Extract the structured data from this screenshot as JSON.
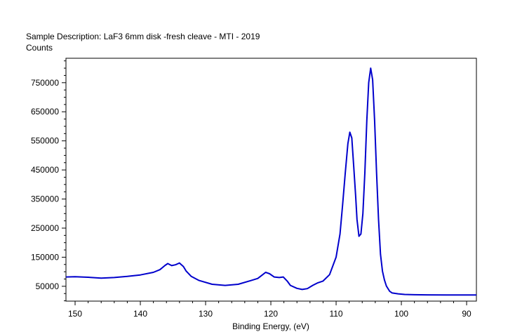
{
  "header": {
    "sample_description": "Sample Description:  LaF3 6mm disk -fresh cleave - MTI - 2019",
    "y_axis_title": "Counts"
  },
  "chart_data": {
    "type": "line",
    "title": "Sample Description:  LaF3 6mm disk -fresh cleave - MTI - 2019",
    "xlabel": "Binding Energy, (eV)",
    "ylabel": "Counts",
    "x_reversed": true,
    "xlim": [
      151.4,
      88.5
    ],
    "ylim": [
      -1000,
      834000
    ],
    "x_ticks": [
      150,
      140,
      130,
      120,
      110,
      100,
      90
    ],
    "x_tick_labels": [
      "150",
      "140",
      "130",
      "120",
      "110",
      "100",
      "90"
    ],
    "y_ticks": [
      50000,
      150000,
      250000,
      350000,
      450000,
      550000,
      650000,
      750000
    ],
    "y_tick_labels": [
      "50000",
      "150000",
      "250000",
      "350000",
      "450000",
      "550000",
      "650000",
      "750000"
    ],
    "grid": false,
    "line_color": "#0000cc",
    "series": [
      {
        "x": [
          151.4,
          150,
          148,
          146,
          144,
          142,
          140,
          138,
          137,
          136.2,
          135.8,
          135.2,
          134.6,
          134.0,
          133.4,
          133.0,
          132.2,
          131.0,
          129.0,
          127.0,
          125.0,
          123.0,
          122.0,
          121.3,
          120.8,
          120.2,
          119.5,
          118.7,
          118.1,
          117.5,
          117.0,
          116.0,
          115.2,
          114.4,
          113.6,
          112.8,
          112.0,
          111.0,
          110.0,
          109.4,
          109.0,
          108.6,
          108.2,
          107.9,
          107.6,
          107.3,
          107.0,
          106.8,
          106.5,
          106.2,
          105.9,
          105.6,
          105.3,
          105.0,
          104.7,
          104.4,
          104.1,
          103.8,
          103.5,
          103.2,
          102.9,
          102.6,
          102.3,
          101.8,
          101.4,
          100.5,
          99.5,
          98.0,
          96.0,
          93.0,
          90.0,
          88.5
        ],
        "y": [
          82000,
          83000,
          81000,
          78000,
          80000,
          84000,
          89000,
          98000,
          107000,
          122000,
          128000,
          121000,
          124000,
          130000,
          118000,
          103000,
          84000,
          70000,
          57000,
          53000,
          57000,
          70000,
          77000,
          89000,
          98000,
          93000,
          82000,
          80000,
          82000,
          68000,
          53000,
          43000,
          39000,
          42000,
          53000,
          62000,
          68000,
          90000,
          150000,
          230000,
          330000,
          440000,
          540000,
          580000,
          560000,
          460000,
          360000,
          280000,
          222000,
          230000,
          300000,
          440000,
          620000,
          750000,
          800000,
          760000,
          620000,
          440000,
          280000,
          160000,
          102000,
          72000,
          51000,
          33000,
          27000,
          24000,
          22000,
          21000,
          20500,
          20000,
          20000,
          20000
        ]
      }
    ]
  }
}
